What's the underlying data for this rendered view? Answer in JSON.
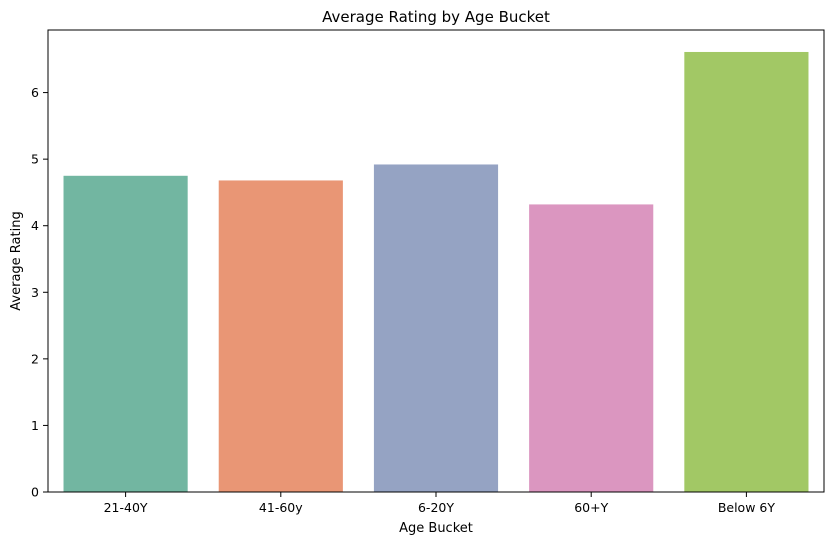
{
  "chart_data": {
    "type": "bar",
    "title": "Average Rating by Age Bucket",
    "xlabel": "Age Bucket",
    "ylabel": "Average Rating",
    "categories": [
      "21-40Y",
      "41-60y",
      "6-20Y",
      "60+Y",
      "Below 6Y"
    ],
    "values": [
      4.75,
      4.68,
      4.92,
      4.32,
      6.61
    ],
    "colors": [
      "#72b6a1",
      "#e99675",
      "#95a3c3",
      "#db96c0",
      "#a2c865"
    ],
    "ylim": [
      0,
      6.94
    ],
    "yticks": [
      "0",
      "1",
      "2",
      "3",
      "4",
      "5",
      "6"
    ],
    "grid": false,
    "legend": "none"
  }
}
